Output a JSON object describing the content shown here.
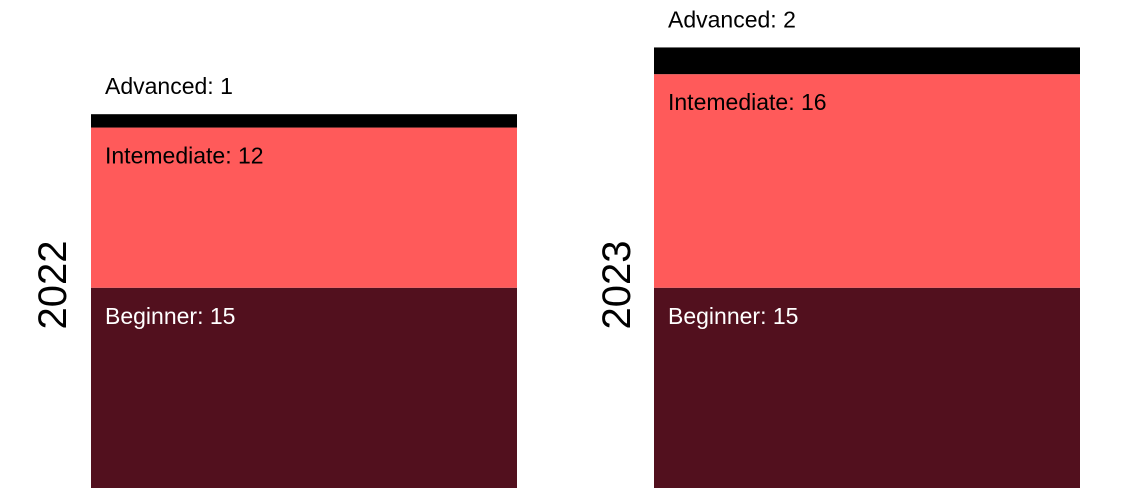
{
  "colors": {
    "background": "#ffffff",
    "text_dark": "#000000",
    "text_light": "#ffffff"
  },
  "chart_data": {
    "type": "bar",
    "stacked": true,
    "orientation": "vertical",
    "categories": [
      "2022",
      "2023"
    ],
    "series": [
      {
        "name": "Beginner",
        "label": "Beginner",
        "values": [
          15,
          15
        ],
        "color": "#52101e",
        "label_color": "#ffffff"
      },
      {
        "name": "Intemediate",
        "label": "Intemediate",
        "values": [
          12,
          16
        ],
        "color": "#ff5a5a",
        "label_color": "#000000"
      },
      {
        "name": "Advanced",
        "label": "Advanced",
        "values": [
          1,
          2
        ],
        "color": "#000000",
        "label_color": "#000000"
      }
    ],
    "data_label_format": "{label}: {value}",
    "legend": "none",
    "grid": false,
    "axes_visible": false,
    "ylim": [
      0,
      33
    ]
  }
}
